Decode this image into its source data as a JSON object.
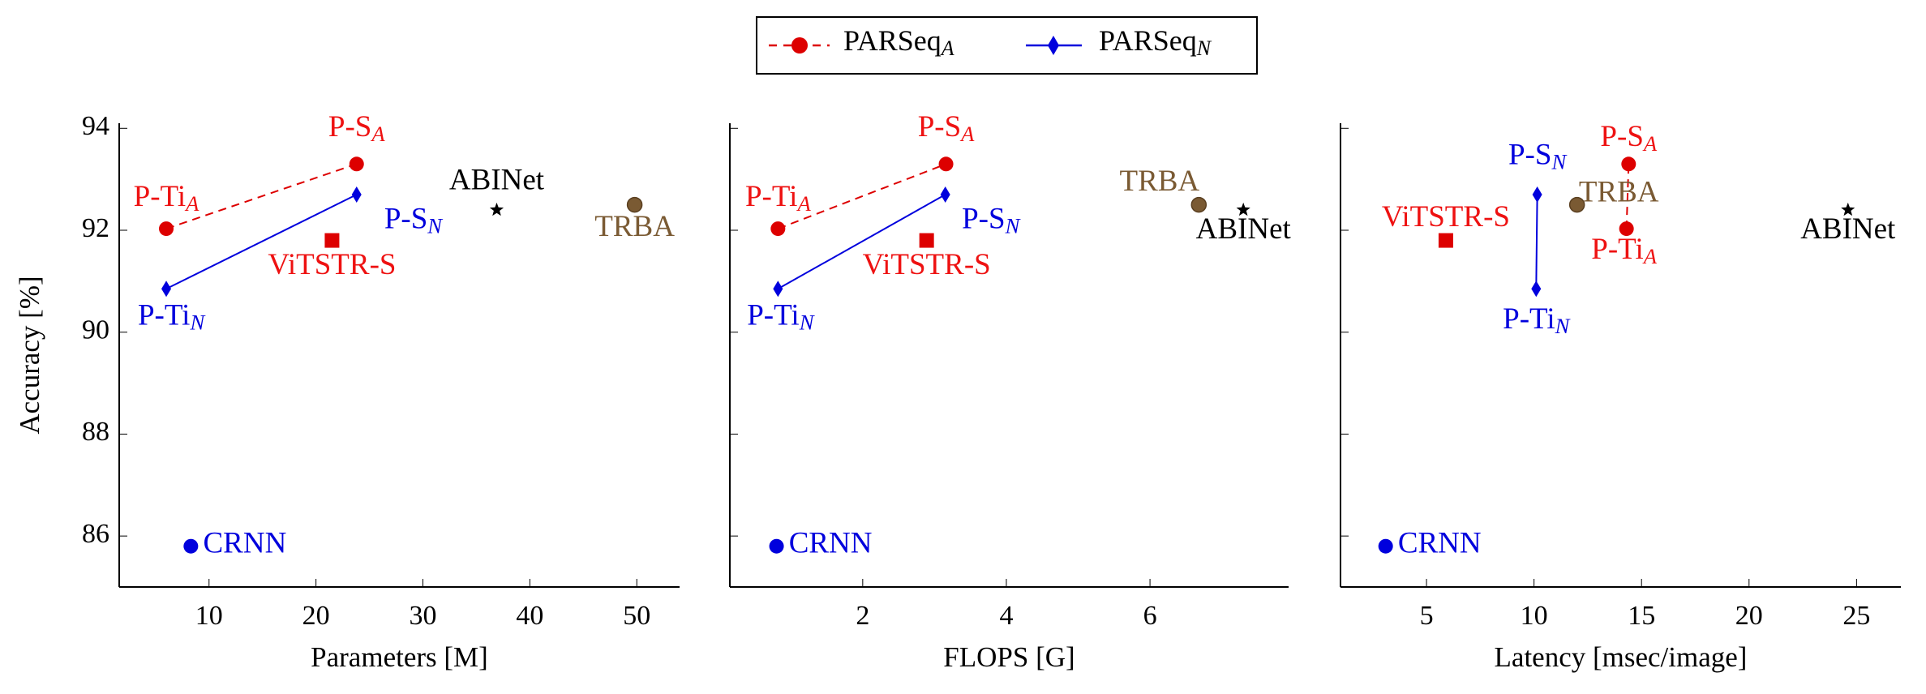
{
  "legend": {
    "placement": "top-center",
    "entries": [
      {
        "label": "PARSeq",
        "sub": "A",
        "color": "#dd0000",
        "line": "dashed",
        "marker": "circle"
      },
      {
        "label": "PARSeq",
        "sub": "N",
        "color": "#0000dd",
        "line": "solid",
        "marker": "diamond"
      }
    ]
  },
  "colors": {
    "parseq_a": "#dd0000",
    "parseq_a_label": "#ee1111",
    "parseq_n": "#0000dd",
    "vitstr": "#dd0000",
    "crnn": "#0000dd",
    "trba": "#7a5a33",
    "abinet": "#000000"
  },
  "chart_data": [
    {
      "type": "scatter",
      "xlabel": "Parameters [M]",
      "ylabel": "Accuracy [%]",
      "xlim": [
        1.6,
        54
      ],
      "ylim": [
        85,
        94.1
      ],
      "xticks": [
        10,
        20,
        30,
        40,
        50
      ],
      "yticks": [
        86,
        88,
        90,
        92,
        94
      ],
      "grid": false,
      "points": [
        {
          "label": "P-Ti",
          "sub": "A",
          "x": 6,
          "y": 92.03,
          "series": "PARSeq_A"
        },
        {
          "label": "P-S",
          "sub": "A",
          "x": 23.8,
          "y": 93.3,
          "series": "PARSeq_A"
        },
        {
          "label": "P-Ti",
          "sub": "N",
          "x": 6,
          "y": 90.85,
          "series": "PARSeq_N"
        },
        {
          "label": "P-S",
          "sub": "N",
          "x": 23.8,
          "y": 92.7,
          "series": "PARSeq_N"
        },
        {
          "label": "ViTSTR-S",
          "sub": "",
          "x": 21.5,
          "y": 91.8,
          "series": "ViTSTR"
        },
        {
          "label": "ABINet",
          "sub": "",
          "x": 36.9,
          "y": 92.4,
          "series": "ABINet"
        },
        {
          "label": "TRBA",
          "sub": "",
          "x": 49.8,
          "y": 92.5,
          "series": "TRBA"
        },
        {
          "label": "CRNN",
          "sub": "",
          "x": 8.3,
          "y": 85.8,
          "series": "CRNN"
        }
      ]
    },
    {
      "type": "scatter",
      "xlabel": "FLOPS [G]",
      "ylabel": "",
      "xlim": [
        0.15,
        7.93
      ],
      "ylim": [
        85,
        94.1
      ],
      "xticks": [
        2,
        4,
        6
      ],
      "yticks": [
        86,
        88,
        90,
        92,
        94
      ],
      "grid": false,
      "points": [
        {
          "label": "P-Ti",
          "sub": "A",
          "x": 0.82,
          "y": 92.03,
          "series": "PARSeq_A"
        },
        {
          "label": "P-S",
          "sub": "A",
          "x": 3.16,
          "y": 93.3,
          "series": "PARSeq_A"
        },
        {
          "label": "P-Ti",
          "sub": "N",
          "x": 0.82,
          "y": 90.85,
          "series": "PARSeq_N"
        },
        {
          "label": "P-S",
          "sub": "N",
          "x": 3.15,
          "y": 92.7,
          "series": "PARSeq_N"
        },
        {
          "label": "ViTSTR-S",
          "sub": "",
          "x": 2.89,
          "y": 91.8,
          "series": "ViTSTR"
        },
        {
          "label": "TRBA",
          "sub": "",
          "x": 6.68,
          "y": 92.5,
          "series": "TRBA"
        },
        {
          "label": "ABINet",
          "sub": "",
          "x": 7.3,
          "y": 92.4,
          "series": "ABINet"
        },
        {
          "label": "CRNN",
          "sub": "",
          "x": 0.8,
          "y": 85.8,
          "series": "CRNN"
        }
      ]
    },
    {
      "type": "scatter",
      "xlabel": "Latency [msec/image]",
      "ylabel": "",
      "xlim": [
        1.0,
        27.06
      ],
      "ylim": [
        85,
        94.1
      ],
      "xticks": [
        5,
        10,
        15,
        20,
        25
      ],
      "yticks": [
        86,
        88,
        90,
        92,
        94
      ],
      "grid": false,
      "points": [
        {
          "label": "P-Ti",
          "sub": "A",
          "x": 14.3,
          "y": 92.03,
          "series": "PARSeq_A"
        },
        {
          "label": "P-S",
          "sub": "A",
          "x": 14.4,
          "y": 93.3,
          "series": "PARSeq_A"
        },
        {
          "label": "P-Ti",
          "sub": "N",
          "x": 10.1,
          "y": 90.85,
          "series": "PARSeq_N"
        },
        {
          "label": "P-S",
          "sub": "N",
          "x": 10.15,
          "y": 92.7,
          "series": "PARSeq_N"
        },
        {
          "label": "ViTSTR-S",
          "sub": "",
          "x": 5.9,
          "y": 91.8,
          "series": "ViTSTR"
        },
        {
          "label": "TRBA",
          "sub": "",
          "x": 12.0,
          "y": 92.5,
          "series": "TRBA"
        },
        {
          "label": "ABINet",
          "sub": "",
          "x": 24.6,
          "y": 92.4,
          "series": "ABINet"
        },
        {
          "label": "CRNN",
          "sub": "",
          "x": 3.1,
          "y": 85.8,
          "series": "CRNN"
        }
      ]
    }
  ]
}
